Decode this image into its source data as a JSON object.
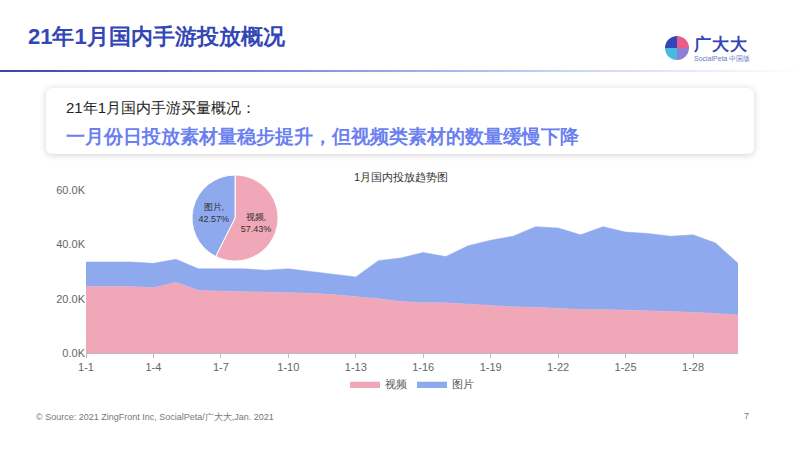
{
  "slide": {
    "title": "21年1月国内手游投放概况",
    "logo": {
      "name": "广大大",
      "sub": "SocialPeta 中国版"
    },
    "box": {
      "heading": "21年1月国内手游买量概况：",
      "text": "一月份日投放素材量稳步提升，但视频类素材的数量缓慢下降"
    },
    "source": "© Source: 2021 ZingFront Inc, SocialPeta/广大大,Jan. 2021",
    "page": "7"
  },
  "chart_data": [
    {
      "type": "area",
      "title": "1月国内投放趋势图",
      "stacked": true,
      "grid": false,
      "legend": "bottom",
      "categories": [
        "1-1",
        null,
        null,
        "1-4",
        null,
        null,
        "1-7",
        null,
        null,
        "1-10",
        null,
        null,
        "1-13",
        null,
        null,
        "1-16",
        null,
        null,
        "1-19",
        null,
        null,
        "1-22",
        null,
        null,
        "1-25",
        null,
        null,
        "1-28",
        null,
        null
      ],
      "series": [
        {
          "name": "视频",
          "color": "#f0a8b8",
          "values": [
            24500,
            24500,
            24500,
            24000,
            26000,
            23000,
            22800,
            22800,
            22500,
            22200,
            22000,
            21500,
            20800,
            20000,
            19000,
            18500,
            18500,
            18000,
            17500,
            17000,
            16800,
            16500,
            16000,
            16000,
            15800,
            15500,
            15200,
            15000,
            14500,
            14000
          ]
        },
        {
          "name": "图片",
          "color": "#8fa9ef",
          "values": [
            9000,
            9000,
            9000,
            9000,
            8500,
            8000,
            8200,
            8200,
            8000,
            8800,
            8000,
            7500,
            7200,
            14000,
            16000,
            18500,
            17000,
            21500,
            24000,
            26000,
            29700,
            29500,
            27500,
            30500,
            28700,
            28500,
            27800,
            28500,
            26000,
            19000
          ]
        }
      ],
      "ylim": [
        0,
        60000
      ],
      "yticks": [
        {
          "value": 0,
          "label": "0.0K"
        },
        {
          "value": 20000,
          "label": "20.0K"
        },
        {
          "value": 40000,
          "label": "40.0K"
        },
        {
          "value": 60000,
          "label": "60.0K"
        }
      ]
    },
    {
      "type": "pie",
      "categories": [
        "视频,",
        "图片,"
      ],
      "values": [
        57.43,
        42.57
      ],
      "value_labels": [
        "57.43%",
        "42.57%"
      ],
      "colors": [
        "#f0a8b8",
        "#8fa9ef"
      ],
      "data_labels": true
    }
  ]
}
